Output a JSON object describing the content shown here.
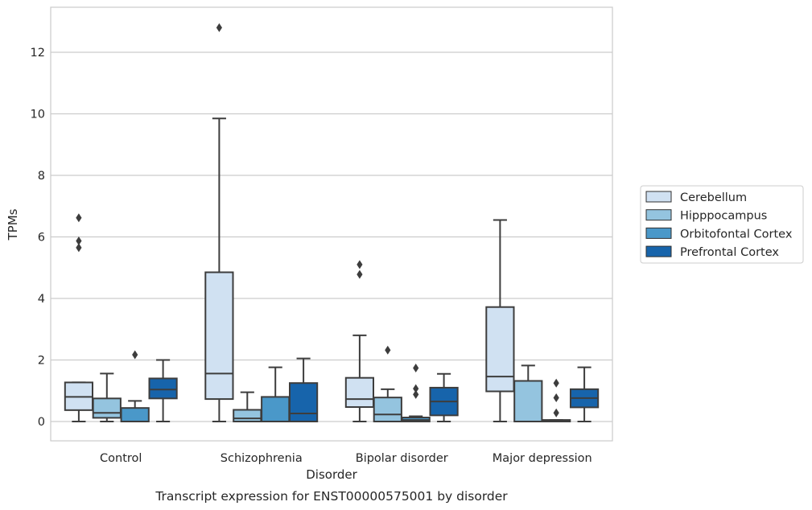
{
  "chart_data": {
    "type": "box",
    "caption": "Transcript expression for ENST00000575001 by disorder",
    "xlabel": "Disorder",
    "ylabel": "TPMs",
    "ylim": [
      -0.6,
      13.5
    ],
    "yticks": [
      0,
      2,
      4,
      6,
      8,
      10,
      12
    ],
    "grid": true,
    "legend_position": "right",
    "categories": [
      "Control",
      "Schizophrenia",
      "Bipolar disorder",
      "Major depression"
    ],
    "series": [
      {
        "name": "Cerebellum",
        "color": "#d0e1f2",
        "boxes": [
          {
            "whisker_low": 0.0,
            "q1": 0.37,
            "median": 0.8,
            "q3": 1.27,
            "whisker_high": 1.27,
            "outliers": [
              5.65,
              5.87,
              6.62
            ]
          },
          {
            "whisker_low": 0.0,
            "q1": 0.73,
            "median": 1.56,
            "q3": 4.85,
            "whisker_high": 9.85,
            "outliers": [
              12.8
            ]
          },
          {
            "whisker_low": 0.0,
            "q1": 0.47,
            "median": 0.73,
            "q3": 1.42,
            "whisker_high": 2.8,
            "outliers": [
              4.78,
              5.1
            ]
          },
          {
            "whisker_low": 0.0,
            "q1": 0.98,
            "median": 1.46,
            "q3": 3.72,
            "whisker_high": 6.55,
            "outliers": []
          }
        ]
      },
      {
        "name": "Hipppocampus",
        "color": "#94c4df",
        "boxes": [
          {
            "whisker_low": 0.0,
            "q1": 0.12,
            "median": 0.28,
            "q3": 0.75,
            "whisker_high": 1.56,
            "outliers": []
          },
          {
            "whisker_low": 0.0,
            "q1": 0.0,
            "median": 0.1,
            "q3": 0.38,
            "whisker_high": 0.95,
            "outliers": []
          },
          {
            "whisker_low": 0.0,
            "q1": 0.0,
            "median": 0.23,
            "q3": 0.78,
            "whisker_high": 1.05,
            "outliers": [
              2.32
            ]
          },
          {
            "whisker_low": 0.0,
            "q1": 0.0,
            "median": 0.0,
            "q3": 1.32,
            "whisker_high": 1.82,
            "outliers": []
          }
        ]
      },
      {
        "name": "Orbitofontal Cortex",
        "color": "#4a98c9",
        "boxes": [
          {
            "whisker_low": 0.0,
            "q1": 0.0,
            "median": 0.0,
            "q3": 0.44,
            "whisker_high": 0.67,
            "outliers": [
              2.17
            ]
          },
          {
            "whisker_low": 0.0,
            "q1": 0.0,
            "median": 0.0,
            "q3": 0.8,
            "whisker_high": 1.76,
            "outliers": []
          },
          {
            "whisker_low": 0.0,
            "q1": 0.0,
            "median": 0.05,
            "q3": 0.13,
            "whisker_high": 0.17,
            "outliers": [
              0.88,
              1.07,
              1.74
            ]
          },
          {
            "whisker_low": 0.0,
            "q1": 0.0,
            "median": 0.02,
            "q3": 0.05,
            "whisker_high": 0.05,
            "outliers": [
              0.28,
              0.77,
              1.25
            ]
          }
        ]
      },
      {
        "name": "Prefrontal Cortex",
        "color": "#1764ab",
        "boxes": [
          {
            "whisker_low": 0.0,
            "q1": 0.75,
            "median": 1.04,
            "q3": 1.4,
            "whisker_high": 2.0,
            "outliers": []
          },
          {
            "whisker_low": 0.0,
            "q1": 0.0,
            "median": 0.26,
            "q3": 1.25,
            "whisker_high": 2.05,
            "outliers": []
          },
          {
            "whisker_low": 0.0,
            "q1": 0.2,
            "median": 0.65,
            "q3": 1.1,
            "whisker_high": 1.55,
            "outliers": []
          },
          {
            "whisker_low": 0.0,
            "q1": 0.46,
            "median": 0.76,
            "q3": 1.05,
            "whisker_high": 1.76,
            "outliers": []
          }
        ]
      }
    ]
  }
}
